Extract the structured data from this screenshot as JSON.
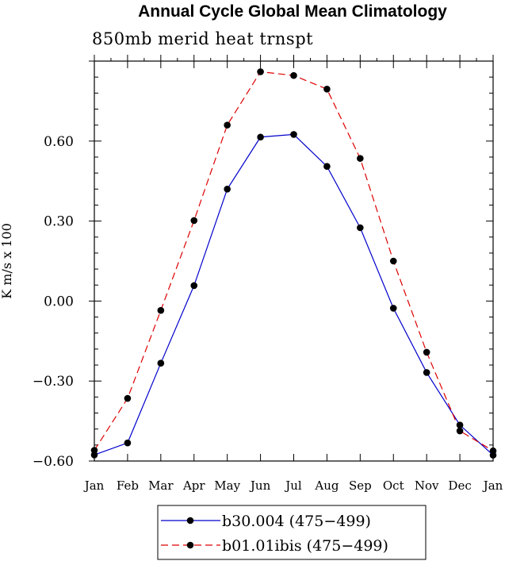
{
  "chart_data": {
    "type": "line",
    "title": "Annual Cycle Global Mean Climatology",
    "subtitle": "850mb merid heat trnspt",
    "ylabel": "K m/s x 100",
    "xlabel": "",
    "categories": [
      "Jan",
      "Feb",
      "Mar",
      "Apr",
      "May",
      "Jun",
      "Jul",
      "Aug",
      "Sep",
      "Oct",
      "Nov",
      "Dec",
      "Jan"
    ],
    "ylim": [
      -0.6,
      0.9
    ],
    "yticks": [
      "0.60",
      "0.30",
      "0.00",
      "−0.30",
      "−0.60"
    ],
    "ytick_values": [
      0.6,
      0.3,
      0.0,
      -0.3,
      -0.6
    ],
    "series": [
      {
        "name": "b30.004 (475−499)",
        "color": "#0000cc",
        "style": "solid",
        "values": [
          -0.577,
          -0.532,
          -0.233,
          0.058,
          0.42,
          0.615,
          0.625,
          0.505,
          0.275,
          -0.027,
          -0.268,
          -0.465,
          -0.578
        ]
      },
      {
        "name": "b01.01ibis (475−499)",
        "color": "#dd0000",
        "style": "dashed",
        "values": [
          -0.56,
          -0.365,
          -0.035,
          0.302,
          0.66,
          0.86,
          0.846,
          0.795,
          0.535,
          0.15,
          -0.192,
          -0.487,
          -0.562
        ]
      }
    ],
    "legend_position": "bottom-center",
    "grid": false
  }
}
